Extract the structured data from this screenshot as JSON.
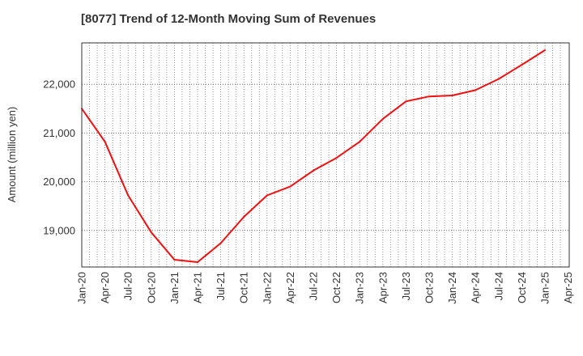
{
  "title": "[8077]  Trend of 12-Month Moving Sum of Revenues",
  "chart_data": {
    "type": "line",
    "title": "[8077]  Trend of 12-Month Moving Sum of Revenues",
    "xlabel": "",
    "ylabel": "Amount (million yen)",
    "ylim": [
      18250,
      22850
    ],
    "yticks": [
      19000,
      20000,
      21000,
      22000
    ],
    "ytick_labels": [
      "19,000",
      "20,000",
      "21,000",
      "22,000"
    ],
    "xtick_labels": [
      "Jan-20",
      "Apr-20",
      "Jul-20",
      "Oct-20",
      "Jan-21",
      "Apr-21",
      "Jul-21",
      "Oct-21",
      "Jan-22",
      "Apr-22",
      "Jul-22",
      "Oct-22",
      "Jan-23",
      "Apr-23",
      "Jul-23",
      "Oct-23",
      "Jan-24",
      "Apr-24",
      "Jul-24",
      "Oct-24",
      "Jan-25",
      "Apr-25"
    ],
    "grid": true,
    "line_color": "#ee1111",
    "series": [
      {
        "x": [
          "Jan-20",
          "Apr-20",
          "Jul-20",
          "Oct-20",
          "Jan-21",
          "Apr-21",
          "Jul-21",
          "Oct-21",
          "Jan-22",
          "Apr-22",
          "Jul-22",
          "Oct-22",
          "Jan-23",
          "Apr-23",
          "Jul-23",
          "Oct-23",
          "Jan-24",
          "Apr-24",
          "Jul-24",
          "Oct-24",
          "Jan-25"
        ],
        "values": [
          21500,
          20820,
          19720,
          18960,
          18400,
          18350,
          18740,
          19280,
          19720,
          19900,
          20230,
          20490,
          20820,
          21290,
          21650,
          21750,
          21770,
          21880,
          22110,
          22400,
          22700
        ]
      }
    ]
  }
}
